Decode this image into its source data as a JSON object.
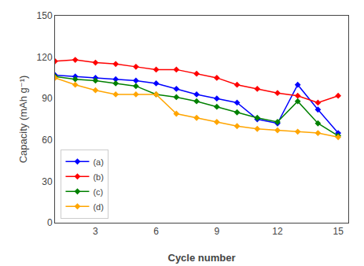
{
  "chart_data": {
    "type": "line",
    "x_label": "Cycle number",
    "y_label": "Capacity (mAh g⁻¹)",
    "x": [
      1,
      2,
      3,
      4,
      5,
      6,
      7,
      8,
      9,
      10,
      11,
      12,
      13,
      14,
      15
    ],
    "series": [
      {
        "name": "(a)",
        "color": "#0000FF",
        "values": [
          107,
          106,
          105,
          104,
          103,
          101,
          97,
          93,
          90,
          87,
          75,
          72,
          100,
          82,
          65
        ]
      },
      {
        "name": "(b)",
        "color": "#FF0000",
        "values": [
          117,
          118,
          116,
          115,
          113,
          111,
          111,
          108,
          105,
          100,
          97,
          94,
          92,
          87,
          92
        ]
      },
      {
        "name": "(c)",
        "color": "#008000",
        "values": [
          106,
          104,
          103,
          101,
          99,
          93,
          91,
          88,
          84,
          80,
          76,
          73,
          88,
          72,
          63
        ]
      },
      {
        "name": "(d)",
        "color": "#FFA500",
        "values": [
          105,
          100,
          96,
          93,
          93,
          93,
          79,
          76,
          73,
          70,
          68,
          67,
          66,
          65,
          62
        ]
      }
    ],
    "xlim": [
      1,
      15.5
    ],
    "ylim": [
      0,
      150
    ],
    "xticks": [
      3,
      6,
      9,
      12,
      15
    ],
    "yticks": [
      0,
      30,
      60,
      90,
      120,
      150
    ],
    "marker": "diamond",
    "grid": false,
    "legend": "lower left"
  }
}
